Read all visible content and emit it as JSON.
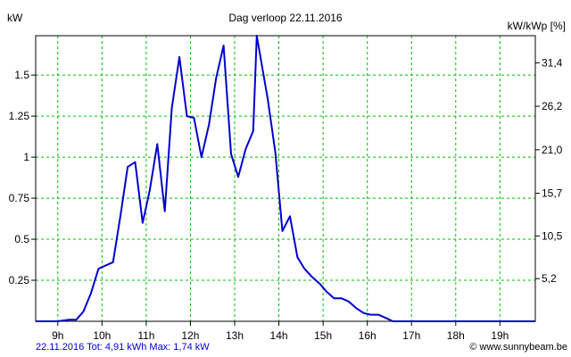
{
  "chart_data": {
    "type": "line",
    "title": "Dag  verloop 22.11.2016",
    "ylabel": "kW",
    "ylabel_right": "kW/kWp [%]",
    "ylim": [
      0,
      1.74
    ],
    "grid": true,
    "x_ticks": [
      9,
      10,
      11,
      12,
      13,
      14,
      15,
      16,
      17,
      18,
      19
    ],
    "x_tick_labels": [
      "9h",
      "10h",
      "11h",
      "12h",
      "13h",
      "14h",
      "15h",
      "16h",
      "17h",
      "18h",
      "19h"
    ],
    "y_ticks": [
      0.25,
      0.5,
      0.75,
      1,
      1.25,
      1.5
    ],
    "y_tick_labels": [
      "0.25",
      "0.5",
      "0.75",
      "1",
      "1.25",
      "1.5"
    ],
    "y2_ticks": [
      0.26,
      0.52,
      0.78,
      1.045,
      1.31,
      1.575
    ],
    "y2_tick_labels": [
      "5,2",
      "10,5",
      "15,7",
      "21,0",
      "26,2",
      "31,4"
    ],
    "series": [
      {
        "color": "#0000cc",
        "x": [
          8.5,
          9.0,
          9.25,
          9.42,
          9.58,
          9.75,
          9.92,
          10.08,
          10.25,
          10.42,
          10.58,
          10.75,
          10.92,
          11.08,
          11.25,
          11.42,
          11.58,
          11.75,
          11.92,
          12.08,
          12.25,
          12.42,
          12.58,
          12.75,
          12.92,
          13.08,
          13.25,
          13.42,
          13.5,
          13.75,
          13.92,
          14.08,
          14.25,
          14.42,
          14.58,
          14.75,
          14.92,
          15.08,
          15.25,
          15.42,
          15.58,
          15.75,
          15.92,
          16.08,
          16.25,
          16.42,
          16.58,
          17.0,
          18.0,
          19.0,
          19.8
        ],
        "y": [
          0,
          0,
          0.01,
          0.01,
          0.06,
          0.17,
          0.32,
          0.34,
          0.36,
          0.65,
          0.94,
          0.97,
          0.6,
          0.8,
          1.08,
          0.67,
          1.3,
          1.61,
          1.25,
          1.24,
          1.0,
          1.2,
          1.48,
          1.68,
          1.02,
          0.88,
          1.05,
          1.16,
          1.74,
          1.35,
          1.03,
          0.55,
          0.64,
          0.39,
          0.32,
          0.27,
          0.23,
          0.18,
          0.14,
          0.14,
          0.12,
          0.08,
          0.05,
          0.04,
          0.04,
          0.02,
          0,
          0,
          0,
          0,
          0
        ]
      }
    ]
  },
  "footer": {
    "summary": "22.11.2016 Tot: 4,91 kWh Max: 1,74 kW",
    "credit": "© www.sunnybeam.be",
    "summary_color": "#0000cc"
  }
}
